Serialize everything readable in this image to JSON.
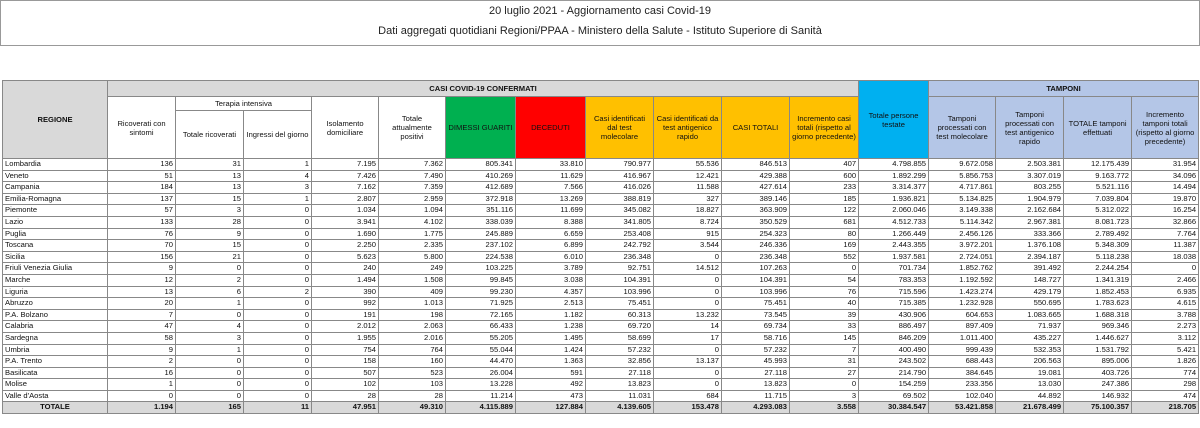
{
  "header": {
    "title": "20 luglio 2021 - Aggiornamento casi Covid-19",
    "subtitle": "Dati aggregati quotidiani Regioni/PPAA - Ministero della Salute - Istituto Superiore di Sanità"
  },
  "table": {
    "group_headers": {
      "casi": "CASI COVID-19 CONFERMATI",
      "terapia": "Terapia intensiva",
      "tamponi": "TAMPONI"
    },
    "columns": [
      "REGIONE",
      "Ricoverati con sintomi",
      "Totale ricoverati",
      "Ingressi del giorno",
      "Isolamento domiciliare",
      "Totale attualmente positivi",
      "DIMESSI GUARITI",
      "DECEDUTI",
      "Casi identificati dal test molecolare",
      "Casi identificati da test antigenico rapido",
      "CASI TOTALI",
      "Incremento casi totali (rispetto al giorno precedente)",
      "Totale persone testate",
      "Tamponi processati con test molecolare",
      "Tamponi processati con test antigenico rapido",
      "TOTALE tamponi effettuati",
      "Incremento tamponi totali (rispetto al giorno precedente)"
    ],
    "rows": [
      [
        "Lombardia",
        "136",
        "31",
        "1",
        "7.195",
        "7.362",
        "805.341",
        "33.810",
        "790.977",
        "55.536",
        "846.513",
        "407",
        "4.798.855",
        "9.672.058",
        "2.503.381",
        "12.175.439",
        "31.954"
      ],
      [
        "Veneto",
        "51",
        "13",
        "4",
        "7.426",
        "7.490",
        "410.269",
        "11.629",
        "416.967",
        "12.421",
        "429.388",
        "600",
        "1.892.299",
        "5.856.753",
        "3.307.019",
        "9.163.772",
        "34.096"
      ],
      [
        "Campania",
        "184",
        "13",
        "3",
        "7.162",
        "7.359",
        "412.689",
        "7.566",
        "416.026",
        "11.588",
        "427.614",
        "233",
        "3.314.377",
        "4.717.861",
        "803.255",
        "5.521.116",
        "14.494"
      ],
      [
        "Emilia-Romagna",
        "137",
        "15",
        "1",
        "2.807",
        "2.959",
        "372.918",
        "13.269",
        "388.819",
        "327",
        "389.146",
        "185",
        "1.936.821",
        "5.134.825",
        "1.904.979",
        "7.039.804",
        "19.870"
      ],
      [
        "Piemonte",
        "57",
        "3",
        "0",
        "1.034",
        "1.094",
        "351.116",
        "11.699",
        "345.082",
        "18.827",
        "363.909",
        "122",
        "2.060.046",
        "3.149.338",
        "2.162.684",
        "5.312.022",
        "16.254"
      ],
      [
        "Lazio",
        "133",
        "28",
        "0",
        "3.941",
        "4.102",
        "338.039",
        "8.388",
        "341.805",
        "8.724",
        "350.529",
        "681",
        "4.512.733",
        "5.114.342",
        "2.967.381",
        "8.081.723",
        "32.866"
      ],
      [
        "Puglia",
        "76",
        "9",
        "0",
        "1.690",
        "1.775",
        "245.889",
        "6.659",
        "253.408",
        "915",
        "254.323",
        "80",
        "1.266.449",
        "2.456.126",
        "333.366",
        "2.789.492",
        "7.764"
      ],
      [
        "Toscana",
        "70",
        "15",
        "0",
        "2.250",
        "2.335",
        "237.102",
        "6.899",
        "242.792",
        "3.544",
        "246.336",
        "169",
        "2.443.355",
        "3.972.201",
        "1.376.108",
        "5.348.309",
        "11.387"
      ],
      [
        "Sicilia",
        "156",
        "21",
        "0",
        "5.623",
        "5.800",
        "224.538",
        "6.010",
        "236.348",
        "0",
        "236.348",
        "552",
        "1.937.581",
        "2.724.051",
        "2.394.187",
        "5.118.238",
        "18.038"
      ],
      [
        "Friuli Venezia Giulia",
        "9",
        "0",
        "0",
        "240",
        "249",
        "103.225",
        "3.789",
        "92.751",
        "14.512",
        "107.263",
        "0",
        "701.734",
        "1.852.762",
        "391.492",
        "2.244.254",
        "0"
      ],
      [
        "Marche",
        "12",
        "2",
        "0",
        "1.494",
        "1.508",
        "99.845",
        "3.038",
        "104.391",
        "0",
        "104.391",
        "54",
        "783.353",
        "1.192.592",
        "148.727",
        "1.341.319",
        "2.466"
      ],
      [
        "Liguria",
        "13",
        "6",
        "2",
        "390",
        "409",
        "99.230",
        "4.357",
        "103.996",
        "0",
        "103.996",
        "76",
        "715.596",
        "1.423.274",
        "429.179",
        "1.852.453",
        "6.935"
      ],
      [
        "Abruzzo",
        "20",
        "1",
        "0",
        "992",
        "1.013",
        "71.925",
        "2.513",
        "75.451",
        "0",
        "75.451",
        "40",
        "715.385",
        "1.232.928",
        "550.695",
        "1.783.623",
        "4.615"
      ],
      [
        "P.A. Bolzano",
        "7",
        "0",
        "0",
        "191",
        "198",
        "72.165",
        "1.182",
        "60.313",
        "13.232",
        "73.545",
        "39",
        "430.906",
        "604.653",
        "1.083.665",
        "1.688.318",
        "3.788"
      ],
      [
        "Calabria",
        "47",
        "4",
        "0",
        "2.012",
        "2.063",
        "66.433",
        "1.238",
        "69.720",
        "14",
        "69.734",
        "33",
        "886.497",
        "897.409",
        "71.937",
        "969.346",
        "2.273"
      ],
      [
        "Sardegna",
        "58",
        "3",
        "0",
        "1.955",
        "2.016",
        "55.205",
        "1.495",
        "58.699",
        "17",
        "58.716",
        "145",
        "846.209",
        "1.011.400",
        "435.227",
        "1.446.627",
        "3.112"
      ],
      [
        "Umbria",
        "9",
        "1",
        "0",
        "754",
        "764",
        "55.044",
        "1.424",
        "57.232",
        "0",
        "57.232",
        "7",
        "400.490",
        "999.439",
        "532.353",
        "1.531.792",
        "5.421"
      ],
      [
        "P.A. Trento",
        "2",
        "0",
        "0",
        "158",
        "160",
        "44.470",
        "1.363",
        "32.856",
        "13.137",
        "45.993",
        "31",
        "243.502",
        "688.443",
        "206.563",
        "895.006",
        "1.826"
      ],
      [
        "Basilicata",
        "16",
        "0",
        "0",
        "507",
        "523",
        "26.004",
        "591",
        "27.118",
        "0",
        "27.118",
        "27",
        "214.790",
        "384.645",
        "19.081",
        "403.726",
        "774"
      ],
      [
        "Molise",
        "1",
        "0",
        "0",
        "102",
        "103",
        "13.228",
        "492",
        "13.823",
        "0",
        "13.823",
        "0",
        "154.259",
        "233.356",
        "13.030",
        "247.386",
        "298"
      ],
      [
        "Valle d'Aosta",
        "0",
        "0",
        "0",
        "28",
        "28",
        "11.214",
        "473",
        "11.031",
        "684",
        "11.715",
        "3",
        "69.502",
        "102.040",
        "44.892",
        "146.932",
        "474"
      ]
    ],
    "total": [
      "TOTALE",
      "1.194",
      "165",
      "11",
      "47.951",
      "49.310",
      "4.115.889",
      "127.884",
      "4.139.605",
      "153.478",
      "4.293.083",
      "3.558",
      "30.384.547",
      "53.421.858",
      "21.678.499",
      "75.100.357",
      "218.705"
    ]
  }
}
